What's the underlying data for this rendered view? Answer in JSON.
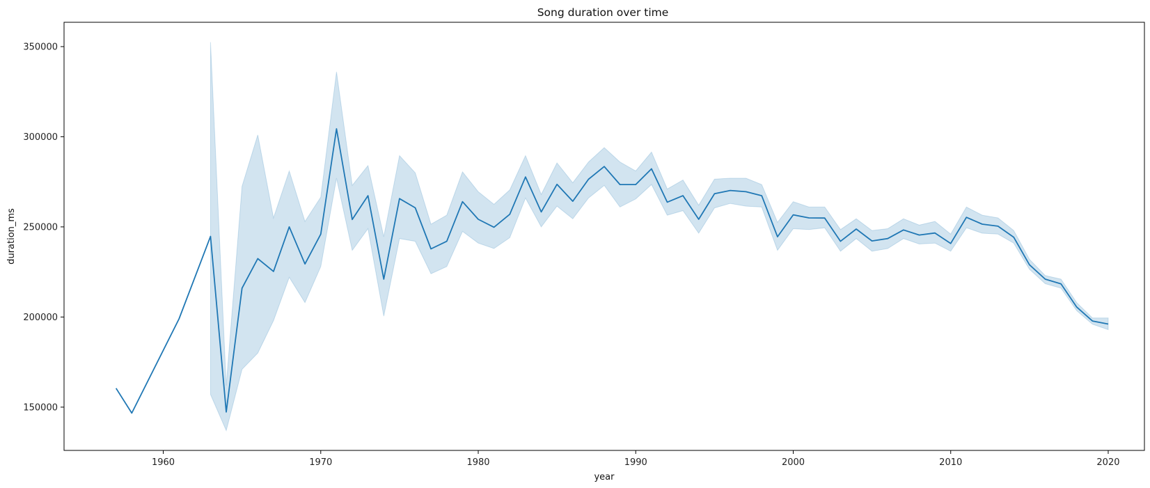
{
  "chart_data": {
    "type": "line",
    "title": "Song duration over time",
    "xlabel": "year",
    "ylabel": "duration_ms",
    "xlim": [
      1953.7,
      2022.3
    ],
    "ylim": [
      126000,
      363500
    ],
    "xticks": [
      1960,
      1970,
      1980,
      1990,
      2000,
      2010,
      2020
    ],
    "yticks": [
      150000,
      200000,
      250000,
      300000,
      350000
    ],
    "grid": false,
    "colors": {
      "line": "#1f77b4",
      "band": "#1f77b4"
    },
    "series": [
      {
        "x": [
          1957,
          1958,
          1961,
          1963,
          1964,
          1965,
          1966,
          1967,
          1968,
          1969,
          1970,
          1971,
          1972,
          1973,
          1974,
          1975,
          1976,
          1977,
          1978,
          1979,
          1980,
          1981,
          1982,
          1983,
          1984,
          1985,
          1986,
          1987,
          1988,
          1989,
          1990,
          1991,
          1992,
          1993,
          1994,
          1995,
          1996,
          1997,
          1998,
          1999,
          2000,
          2001,
          2002,
          2003,
          2004,
          2005,
          2006,
          2007,
          2008,
          2009,
          2010,
          2011,
          2012,
          2013,
          2014,
          2015,
          2016,
          2017,
          2018,
          2019,
          2020
        ],
        "values": [
          160500,
          146700,
          199000,
          244700,
          147300,
          216000,
          232400,
          225300,
          250000,
          229400,
          246000,
          304400,
          254100,
          267300,
          221000,
          265700,
          260600,
          237800,
          242000,
          264000,
          254200,
          249800,
          257000,
          277700,
          258300,
          273600,
          264200,
          276400,
          283500,
          273500,
          273500,
          282200,
          263700,
          267300,
          254200,
          268400,
          270200,
          269500,
          267300,
          244500,
          256700,
          255000,
          254900,
          242000,
          248800,
          242200,
          243500,
          248300,
          245500,
          246600,
          240800,
          255300,
          251500,
          250400,
          244300,
          229000,
          221000,
          218400,
          205500,
          197800,
          196100
        ],
        "ci_lower": [
          null,
          null,
          null,
          157000,
          137000,
          171000,
          180000,
          198000,
          222000,
          208000,
          228000,
          277000,
          237000,
          249000,
          200500,
          243500,
          242000,
          224000,
          228000,
          247500,
          241000,
          238000,
          244000,
          266000,
          250000,
          261500,
          254500,
          266000,
          273000,
          261000,
          265500,
          273500,
          256500,
          259000,
          246500,
          260500,
          263000,
          261500,
          261000,
          237000,
          249000,
          248500,
          249500,
          236500,
          243500,
          236500,
          238000,
          243500,
          240500,
          241000,
          236500,
          249500,
          246500,
          246000,
          241000,
          226500,
          218500,
          216000,
          203500,
          196000,
          193000
        ],
        "ci_upper": [
          null,
          null,
          null,
          352500,
          162000,
          272500,
          301000,
          255000,
          281000,
          253000,
          266500,
          336000,
          273000,
          284000,
          244500,
          289500,
          280000,
          251500,
          256500,
          280500,
          269500,
          262500,
          270500,
          289500,
          268000,
          285500,
          274500,
          286000,
          294000,
          286000,
          281000,
          291500,
          271000,
          276000,
          262000,
          276500,
          277000,
          277000,
          273500,
          252500,
          264000,
          261000,
          261000,
          248500,
          254500,
          248000,
          249000,
          254500,
          251000,
          253000,
          246000,
          261000,
          256500,
          255000,
          248000,
          232000,
          223000,
          221000,
          208000,
          199500,
          199500
        ]
      }
    ]
  }
}
